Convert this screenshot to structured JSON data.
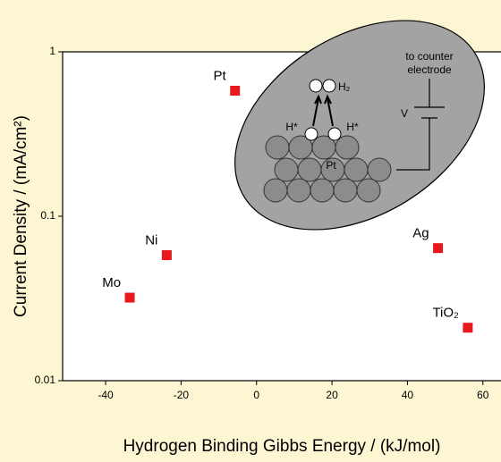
{
  "chart_data": {
    "type": "scatter",
    "x_label": "Hydrogen Binding Gibbs Energy / (kJ/mol)",
    "y_label": "Current Density / (mA/cm²)",
    "point_labels": [
      "Pt",
      "Ni",
      "Mo",
      "Ag",
      "TiO₂"
    ],
    "x": [
      -5.7,
      -23.8,
      -33.6,
      48.1,
      56
    ],
    "values": [
      0.58,
      0.058,
      0.032,
      0.064,
      0.021
    ],
    "color": "#e8191c",
    "xlim": [
      -51.4,
      64.8
    ],
    "xticks": [
      -40,
      -20,
      0,
      20,
      40,
      60
    ],
    "ylim": [
      0.01,
      1
    ],
    "yticks": [
      1,
      0.1,
      0.01
    ],
    "y_log": true,
    "inset": {
      "counter_line1": "to counter",
      "counter_line2": "electrode",
      "voltage": "V",
      "h2": "H₂",
      "h_left": "H*",
      "h_right": "H*",
      "metal": "Pt"
    }
  }
}
